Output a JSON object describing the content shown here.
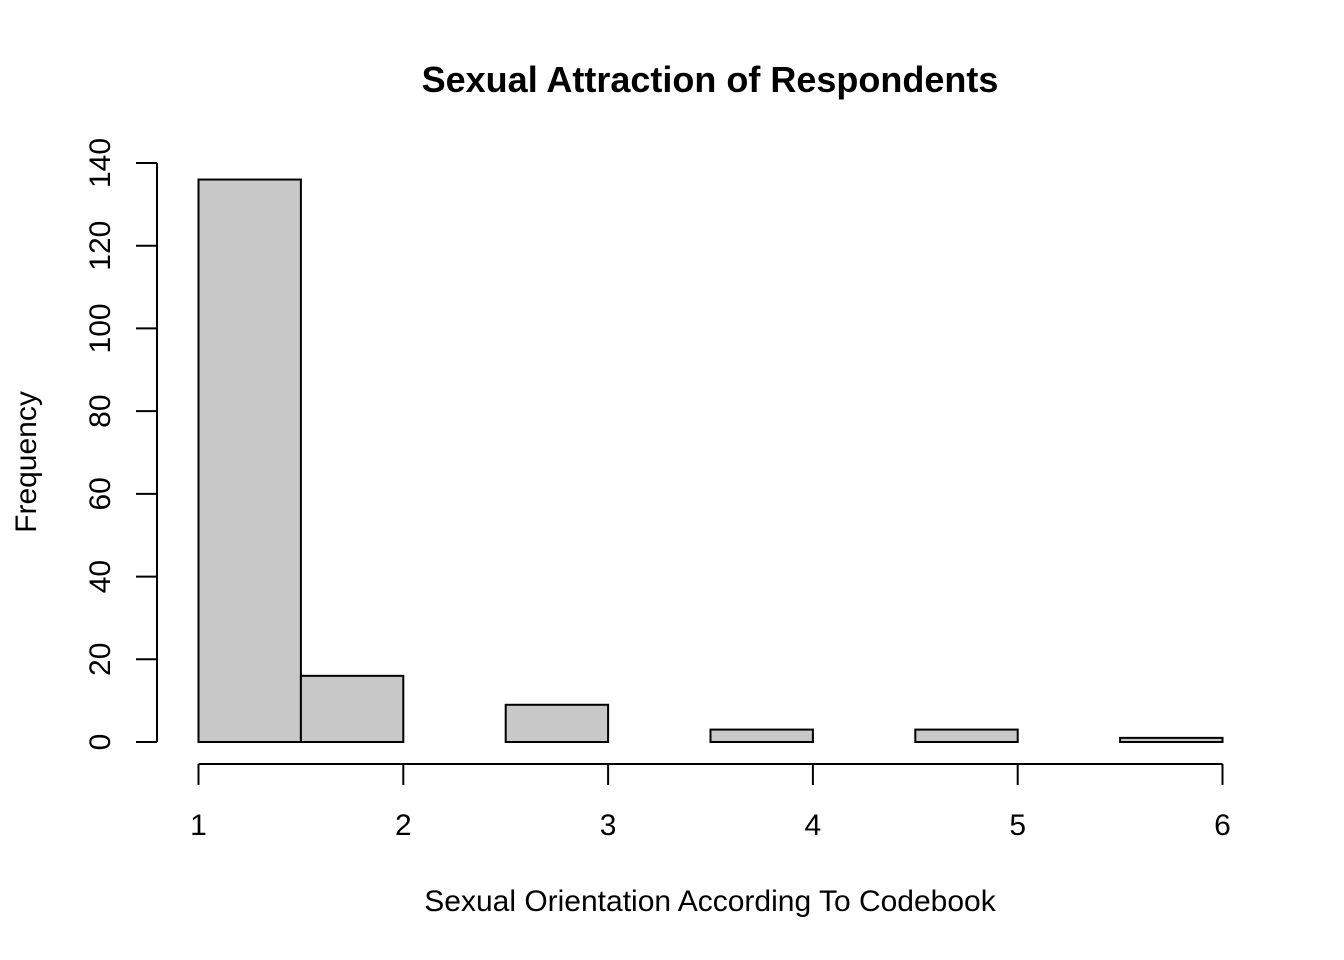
{
  "chart_data": {
    "type": "bar",
    "title": "Sexual Attraction of Respondents",
    "xlabel": "Sexual Orientation According To Codebook",
    "ylabel": "Frequency",
    "bins": [
      {
        "x0": 1.0,
        "x1": 1.5,
        "count": 136
      },
      {
        "x0": 1.5,
        "x1": 2.0,
        "count": 16
      },
      {
        "x0": 2.0,
        "x1": 2.5,
        "count": 0
      },
      {
        "x0": 2.5,
        "x1": 3.0,
        "count": 9
      },
      {
        "x0": 3.0,
        "x1": 3.5,
        "count": 0
      },
      {
        "x0": 3.5,
        "x1": 4.0,
        "count": 3
      },
      {
        "x0": 4.0,
        "x1": 4.5,
        "count": 0
      },
      {
        "x0": 4.5,
        "x1": 5.0,
        "count": 3
      },
      {
        "x0": 5.0,
        "x1": 5.5,
        "count": 0
      },
      {
        "x0": 5.5,
        "x1": 6.0,
        "count": 1
      }
    ],
    "xlim": [
      1,
      6
    ],
    "ylim": [
      0,
      140
    ],
    "xticks": [
      1,
      2,
      3,
      4,
      5,
      6
    ],
    "yticks": [
      0,
      20,
      40,
      60,
      80,
      100,
      120,
      140
    ],
    "grid": false,
    "bar_color": "#c8c8c8",
    "edge_color": "#000000"
  }
}
